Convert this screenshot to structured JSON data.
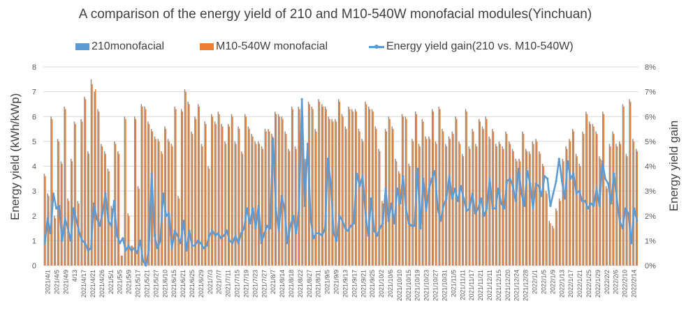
{
  "chart_data": {
    "type": "bar+line",
    "title": "A comparison of the energy yield of 210 and M10-540W monofacial modules(Yinchuan)",
    "ylabel_left": "Energy yield  (kWh/kWp)",
    "ylabel_right": "Energy yield gain",
    "ylim_left": [
      0,
      8
    ],
    "ylim_right": [
      0,
      8
    ],
    "yticks_left": [
      "0",
      "1",
      "2",
      "3",
      "4",
      "5",
      "6",
      "7",
      "8"
    ],
    "yticks_right": [
      "0%",
      "1%",
      "2%",
      "3%",
      "4%",
      "5%",
      "6%",
      "7%",
      "8%"
    ],
    "grid": true,
    "legend_position": "top",
    "legend": [
      {
        "name": "210monofacial",
        "type": "bar",
        "color": "#5B9BD5"
      },
      {
        "name": "M10-540W monofacial",
        "type": "bar",
        "color": "#ED7D31"
      },
      {
        "name": "Energy yield gain(210 vs. M10-540W)",
        "type": "line",
        "color": "#5B9BD5"
      }
    ],
    "xtick_labels": [
      "2021/4/1",
      "2021/4/5",
      "2021/4/9",
      "4/13",
      "2021/4/17",
      "2021/4/21",
      "2021/4/26",
      "2021/5/1",
      "2021/5/5",
      "2021/5/9",
      "2021/5/17",
      "2021/5/21",
      "2021/5/27",
      "2021/6/10",
      "2021/6/15",
      "2021/6/21",
      "2021/6/25",
      "2021/6/29",
      "2021/7/3",
      "2021/7/7",
      "2021/7/11",
      "2021/7/15",
      "2021/7/19",
      "2021/7/23",
      "2021/7/27",
      "2021/8/7",
      "2021/8/14",
      "2021/8/18",
      "2021/8/22",
      "2021/8/27",
      "2021/8/31",
      "2021/9/5",
      "2021/9/9",
      "2021/9/13",
      "2021/9/17",
      "2021/9/21",
      "2021/9/25",
      "2021/10/2",
      "2021/10/6",
      "2021/10/10",
      "2021/10/15",
      "2021/10/19",
      "2021/10/23",
      "2021/10/27",
      "2021/10/31",
      "2021/11/5",
      "2021/11/11",
      "2021/11/17",
      "2021/11/21",
      "2021/12/11",
      "2021/12/15",
      "2021/12/20",
      "2021/12/24",
      "2021/12/28",
      "2022/1/1",
      "2022/1/5",
      "2022/1/9",
      "2022/1/13",
      "2022/1/17",
      "2022/1/21",
      "2022/1/25",
      "2022/1/29",
      "2022/2/2",
      "2022/2/6",
      "2022/2/10",
      "2022/2/14"
    ],
    "series": [
      {
        "name": "210monofacial",
        "type": "bar",
        "axis": "left",
        "values": [
          3.7,
          2.9,
          6.0,
          2.0,
          5.1,
          4.2,
          6.4,
          2.7,
          4.3,
          5.8,
          2.6,
          5.9,
          6.8,
          4.6,
          7.5,
          7.0,
          6.3,
          4.9,
          4.6,
          3.9,
          2.4,
          5.0,
          4.6,
          0.4,
          6.0,
          2.1,
          0.8,
          6.0,
          3.2,
          6.5,
          6.4,
          5.8,
          5.5,
          5.2,
          5.1,
          4.6,
          5.6,
          5.1,
          4.9,
          6.4,
          2.8,
          6.3,
          7.1,
          6.6,
          5.4,
          6.0,
          6.5,
          4.9,
          5.8,
          4.0,
          6.1,
          5.8,
          6.2,
          5.7,
          5.0,
          5.7,
          6.1,
          5.0,
          5.6,
          4.6,
          6.1,
          5.6,
          5.3,
          5.0,
          5.0,
          4.8,
          5.5,
          5.5,
          5.3,
          6.2,
          6.1,
          6.0,
          5.4,
          4.7,
          6.4,
          4.8,
          6.4,
          6.1,
          4.3,
          6.6,
          6.4,
          5.5,
          6.7,
          6.5,
          6.4,
          6.0,
          5.9,
          5.9,
          6.7,
          6.1,
          5.6,
          6.4,
          6.3,
          6.3,
          5.5,
          5.1,
          6.6,
          6.4,
          6.3,
          5.6,
          4.7,
          2.6,
          5.5,
          6.0,
          5.6,
          4.3,
          3.8,
          6.1,
          6.0,
          4.1,
          5.1,
          6.2,
          4.9,
          5.9,
          5.2,
          5.2,
          6.3,
          5.0,
          6.4,
          5.5,
          4.9,
          5.2,
          5.4,
          6.0,
          5.0,
          4.5,
          6.3,
          4.8,
          5.5,
          4.9,
          5.9,
          5.6,
          6.0,
          5.2,
          5.5,
          4.9,
          5.0,
          4.8,
          5.4,
          5.0,
          4.7,
          4.3,
          4.3,
          5.4,
          4.7,
          4.6,
          5.0,
          5.1,
          4.6,
          4.1,
          3.0,
          1.8,
          1.6,
          2.3,
          2.7,
          4.3,
          4.8,
          5.1,
          5.5,
          4.5,
          4.1,
          5.4,
          6.2,
          5.8,
          5.7,
          5.4,
          4.4,
          6.2,
          3.2,
          4.9,
          5.4,
          4.9,
          5.0,
          6.5,
          4.5,
          6.7,
          5.1,
          4.7
        ]
      },
      {
        "name": "M10-540W monofacial",
        "type": "bar",
        "axis": "left",
        "values": [
          3.6,
          2.8,
          5.9,
          1.9,
          5.0,
          4.1,
          6.3,
          2.6,
          4.2,
          5.7,
          2.5,
          5.8,
          6.7,
          4.5,
          7.3,
          7.1,
          6.2,
          4.8,
          4.5,
          3.8,
          2.3,
          4.9,
          4.5,
          0.4,
          5.9,
          2.0,
          0.8,
          5.9,
          3.1,
          6.4,
          6.3,
          5.7,
          5.4,
          5.1,
          5.0,
          4.5,
          5.5,
          5.0,
          4.8,
          6.3,
          2.7,
          6.2,
          7.0,
          6.5,
          5.3,
          5.9,
          6.4,
          4.8,
          5.7,
          3.9,
          6.0,
          5.7,
          6.1,
          5.6,
          4.9,
          5.6,
          6.0,
          4.9,
          5.5,
          4.5,
          6.0,
          5.5,
          5.2,
          4.9,
          4.9,
          4.7,
          5.4,
          5.4,
          5.2,
          6.1,
          6.0,
          5.9,
          5.3,
          4.6,
          6.3,
          4.7,
          6.3,
          6.0,
          4.2,
          6.5,
          6.3,
          5.4,
          6.6,
          6.4,
          6.3,
          5.9,
          5.8,
          5.8,
          6.6,
          6.0,
          5.5,
          6.3,
          6.2,
          6.2,
          5.4,
          5.0,
          6.5,
          6.3,
          6.2,
          5.5,
          4.6,
          2.5,
          5.4,
          5.9,
          5.5,
          4.2,
          3.7,
          6.0,
          5.9,
          4.0,
          5.0,
          6.1,
          4.8,
          5.8,
          5.1,
          5.1,
          6.2,
          4.9,
          6.3,
          5.4,
          4.8,
          5.1,
          5.3,
          5.9,
          4.9,
          4.4,
          6.2,
          4.7,
          5.4,
          4.8,
          5.8,
          5.5,
          5.9,
          5.1,
          5.4,
          4.8,
          4.9,
          4.7,
          5.3,
          4.9,
          4.6,
          4.2,
          4.2,
          5.3,
          4.6,
          4.5,
          4.9,
          5.0,
          4.5,
          4.0,
          2.9,
          1.7,
          1.5,
          2.2,
          2.6,
          4.2,
          4.7,
          5.0,
          5.4,
          4.4,
          4.0,
          5.3,
          6.1,
          5.7,
          5.6,
          5.3,
          4.3,
          6.1,
          3.1,
          4.8,
          5.3,
          4.8,
          4.9,
          6.4,
          4.4,
          6.6,
          5.0,
          4.6
        ]
      },
      {
        "name": "Energy yield gain(210 vs. M10-540W)",
        "type": "line",
        "axis": "right",
        "unit": "%",
        "values": [
          0.9,
          1.9,
          1.3,
          2.9,
          2.3,
          2.4,
          1.0,
          1.9,
          1.5,
          1.0,
          2.3,
          1.8,
          1.3,
          1.0,
          0.9,
          0.6,
          0.7,
          2.5,
          1.9,
          1.6,
          2.1,
          2.9,
          1.8,
          1.6,
          2.6,
          1.2,
          0.9,
          1.1,
          0.6,
          0.8,
          0.6,
          0.7,
          0.5,
          1.0,
          0.2,
          0.0,
          0.6,
          3.7,
          1.2,
          0.7,
          1.0,
          2.9,
          2.0,
          2.1,
          0.7,
          1.4,
          1.2,
          0.9,
          1.8,
          0.6,
          1.4,
          0.8,
          0.8,
          1.0,
          0.9,
          0.7,
          0.8,
          1.2,
          1.4,
          1.2,
          1.3,
          1.1,
          1.2,
          1.4,
          1.0,
          0.9,
          1.2,
          0.9,
          1.3,
          1.5,
          2.3,
          1.7,
          2.3,
          1.5,
          2.4,
          0.9,
          1.3,
          1.6,
          1.5,
          5.1,
          2.3,
          1.4,
          2.8,
          2.3,
          0.9,
          1.6,
          2.0,
          1.3,
          2.3,
          6.7,
          2.4,
          4.9,
          1.9,
          1.1,
          1.3,
          1.3,
          1.2,
          1.5,
          4.3,
          3.3,
          1.3,
          1.0,
          2.0,
          1.8,
          1.5,
          1.4,
          1.6,
          1.7,
          3.7,
          3.2,
          3.6,
          2.1,
          1.2,
          2.7,
          1.4,
          1.2,
          1.5,
          1.7,
          3.1,
          1.8,
          2.5,
          1.7,
          3.1,
          2.5,
          3.6,
          2.3,
          1.7,
          1.6,
          1.6,
          3.9,
          1.5,
          3.5,
          2.2,
          3.1,
          3.5,
          3.8,
          2.3,
          1.8,
          2.4,
          2.7,
          3.6,
          2.7,
          3.1,
          2.6,
          3.2,
          2.7,
          2.2,
          2.3,
          2.9,
          2.1,
          2.3,
          2.7,
          2.0,
          2.3,
          3.5,
          2.3,
          2.3,
          3.1,
          2.5,
          2.3,
          3.4,
          3.5,
          3.2,
          2.6,
          3.9,
          2.9,
          2.4,
          3.8,
          3.3,
          2.3,
          3.3,
          3.2,
          2.8,
          3.6,
          3.5,
          2.4,
          2.9,
          3.4,
          4.3,
          3.4,
          2.7,
          4.2,
          3.5,
          3.7,
          2.9,
          3.0,
          2.6,
          2.6,
          2.3,
          2.5,
          2.4,
          3.1,
          2.4,
          4.2,
          3.5,
          3.3,
          2.5,
          3.7,
          2.7,
          1.8,
          1.5,
          2.3,
          2.1,
          0.9,
          2.3,
          1.8
        ]
      }
    ]
  }
}
